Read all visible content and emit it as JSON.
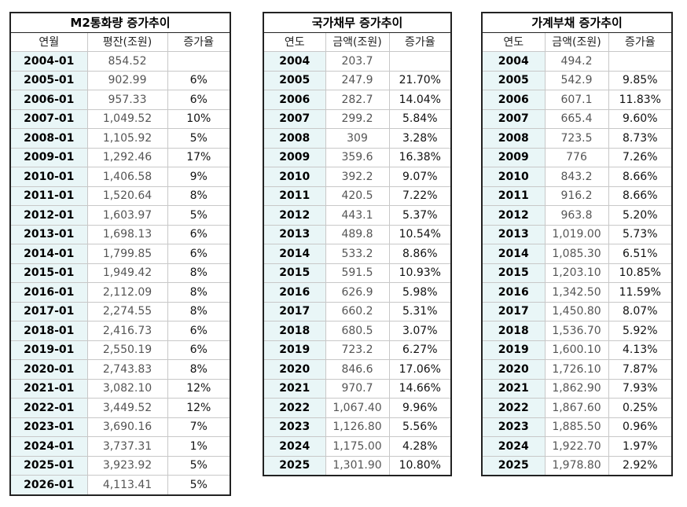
{
  "tables": [
    {
      "title": "M2통화량 증가추이",
      "columns": [
        "연월",
        "평잔(조원)",
        "증가율"
      ],
      "rows": [
        [
          "2004-01",
          "854.52"
        ],
        [
          "2005-01",
          "902.99",
          "6%"
        ],
        [
          "2006-01",
          "957.33",
          "6%"
        ],
        [
          "2007-01",
          "1,049.52",
          "10%"
        ],
        [
          "2008-01",
          "1,105.92",
          "5%"
        ],
        [
          "2009-01",
          "1,292.46",
          "17%"
        ],
        [
          "2010-01",
          "1,406.58",
          "9%"
        ],
        [
          "2011-01",
          "1,520.64",
          "8%"
        ],
        [
          "2012-01",
          "1,603.97",
          "5%"
        ],
        [
          "2013-01",
          "1,698.13",
          "6%"
        ],
        [
          "2014-01",
          "1,799.85",
          "6%"
        ],
        [
          "2015-01",
          "1,949.42",
          "8%"
        ],
        [
          "2016-01",
          "2,112.09",
          "8%"
        ],
        [
          "2017-01",
          "2,274.55",
          "8%"
        ],
        [
          "2018-01",
          "2,416.73",
          "6%"
        ],
        [
          "2019-01",
          "2,550.19",
          "6%"
        ],
        [
          "2020-01",
          "2,743.83",
          "8%"
        ],
        [
          "2021-01",
          "3,082.10",
          "12%"
        ],
        [
          "2022-01",
          "3,449.52",
          "12%"
        ],
        [
          "2023-01",
          "3,690.16",
          "7%"
        ],
        [
          "2024-01",
          "3,737.31",
          "1%"
        ],
        [
          "2025-01",
          "3,923.92",
          "5%"
        ],
        [
          "2026-01",
          "4,113.41",
          "5%"
        ]
      ]
    },
    {
      "title": "국가채무 증가추이",
      "columns": [
        "연도",
        "금액(조원)",
        "증가율"
      ],
      "rows": [
        [
          "2004",
          "203.7"
        ],
        [
          "2005",
          "247.9",
          "21.70%"
        ],
        [
          "2006",
          "282.7",
          "14.04%"
        ],
        [
          "2007",
          "299.2",
          "5.84%"
        ],
        [
          "2008",
          "309",
          "3.28%"
        ],
        [
          "2009",
          "359.6",
          "16.38%"
        ],
        [
          "2010",
          "392.2",
          "9.07%"
        ],
        [
          "2011",
          "420.5",
          "7.22%"
        ],
        [
          "2012",
          "443.1",
          "5.37%"
        ],
        [
          "2013",
          "489.8",
          "10.54%"
        ],
        [
          "2014",
          "533.2",
          "8.86%"
        ],
        [
          "2015",
          "591.5",
          "10.93%"
        ],
        [
          "2016",
          "626.9",
          "5.98%"
        ],
        [
          "2017",
          "660.2",
          "5.31%"
        ],
        [
          "2018",
          "680.5",
          "3.07%"
        ],
        [
          "2019",
          "723.2",
          "6.27%"
        ],
        [
          "2020",
          "846.6",
          "17.06%"
        ],
        [
          "2021",
          "970.7",
          "14.66%"
        ],
        [
          "2022",
          "1,067.40",
          "9.96%"
        ],
        [
          "2023",
          "1,126.80",
          "5.56%"
        ],
        [
          "2024",
          "1,175.00",
          "4.28%"
        ],
        [
          "2025",
          "1,301.90",
          "10.80%"
        ]
      ]
    },
    {
      "title": "가계부채 증가추이",
      "columns": [
        "연도",
        "금액(조원)",
        "증가율"
      ],
      "rows": [
        [
          "2004",
          "494.2"
        ],
        [
          "2005",
          "542.9",
          "9.85%"
        ],
        [
          "2006",
          "607.1",
          "11.83%"
        ],
        [
          "2007",
          "665.4",
          "9.60%"
        ],
        [
          "2008",
          "723.5",
          "8.73%"
        ],
        [
          "2009",
          "776",
          "7.26%"
        ],
        [
          "2010",
          "843.2",
          "8.66%"
        ],
        [
          "2011",
          "916.2",
          "8.66%"
        ],
        [
          "2012",
          "963.8",
          "5.20%"
        ],
        [
          "2013",
          "1,019.00",
          "5.73%"
        ],
        [
          "2014",
          "1,085.30",
          "6.51%"
        ],
        [
          "2015",
          "1,203.10",
          "10.85%"
        ],
        [
          "2016",
          "1,342.50",
          "11.59%"
        ],
        [
          "2017",
          "1,450.80",
          "8.07%"
        ],
        [
          "2018",
          "1,536.70",
          "5.92%"
        ],
        [
          "2019",
          "1,600.10",
          "4.13%"
        ],
        [
          "2020",
          "1,726.10",
          "7.87%"
        ],
        [
          "2021",
          "1,862.90",
          "7.93%"
        ],
        [
          "2022",
          "1,867.60",
          "0.25%"
        ],
        [
          "2023",
          "1,885.50",
          "0.96%"
        ],
        [
          "2024",
          "1,922.70",
          "1.97%"
        ],
        [
          "2025",
          "1,978.80",
          "2.92%"
        ]
      ]
    }
  ]
}
